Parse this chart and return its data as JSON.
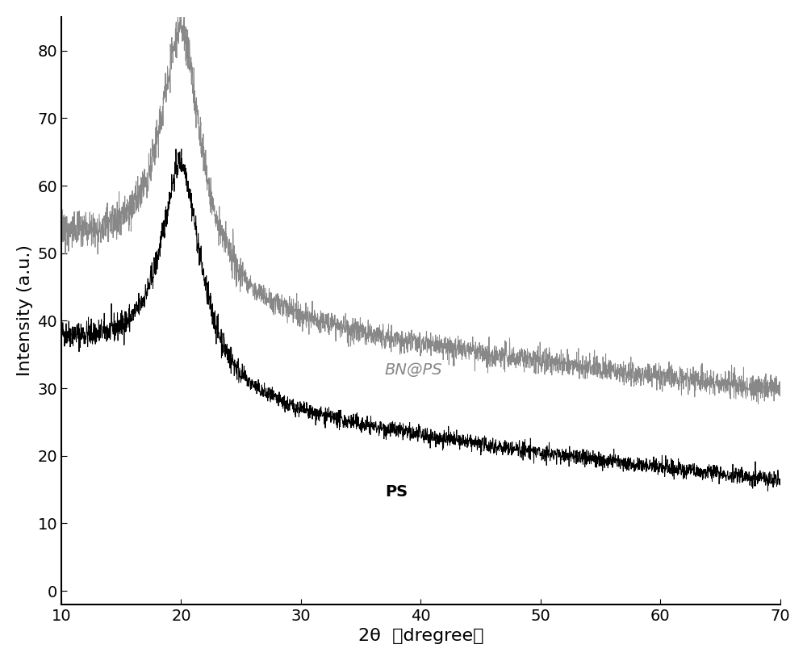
{
  "title": "",
  "xlabel": "2θ  （dregree）",
  "ylabel": "Intensity (a.u.)",
  "xlim": [
    10,
    70
  ],
  "ylim": [
    -2,
    85
  ],
  "xticks": [
    10,
    20,
    30,
    40,
    50,
    60,
    70
  ],
  "yticks": [
    0,
    10,
    20,
    30,
    40,
    50,
    60,
    70,
    80
  ],
  "ps_color": "#000000",
  "bnps_color": "#888888",
  "label_ps": "PS",
  "label_bnps": "BN@PS",
  "background_color": "#ffffff",
  "xlabel_fontsize": 16,
  "ylabel_fontsize": 16,
  "tick_fontsize": 14,
  "label_fontsize": 14
}
